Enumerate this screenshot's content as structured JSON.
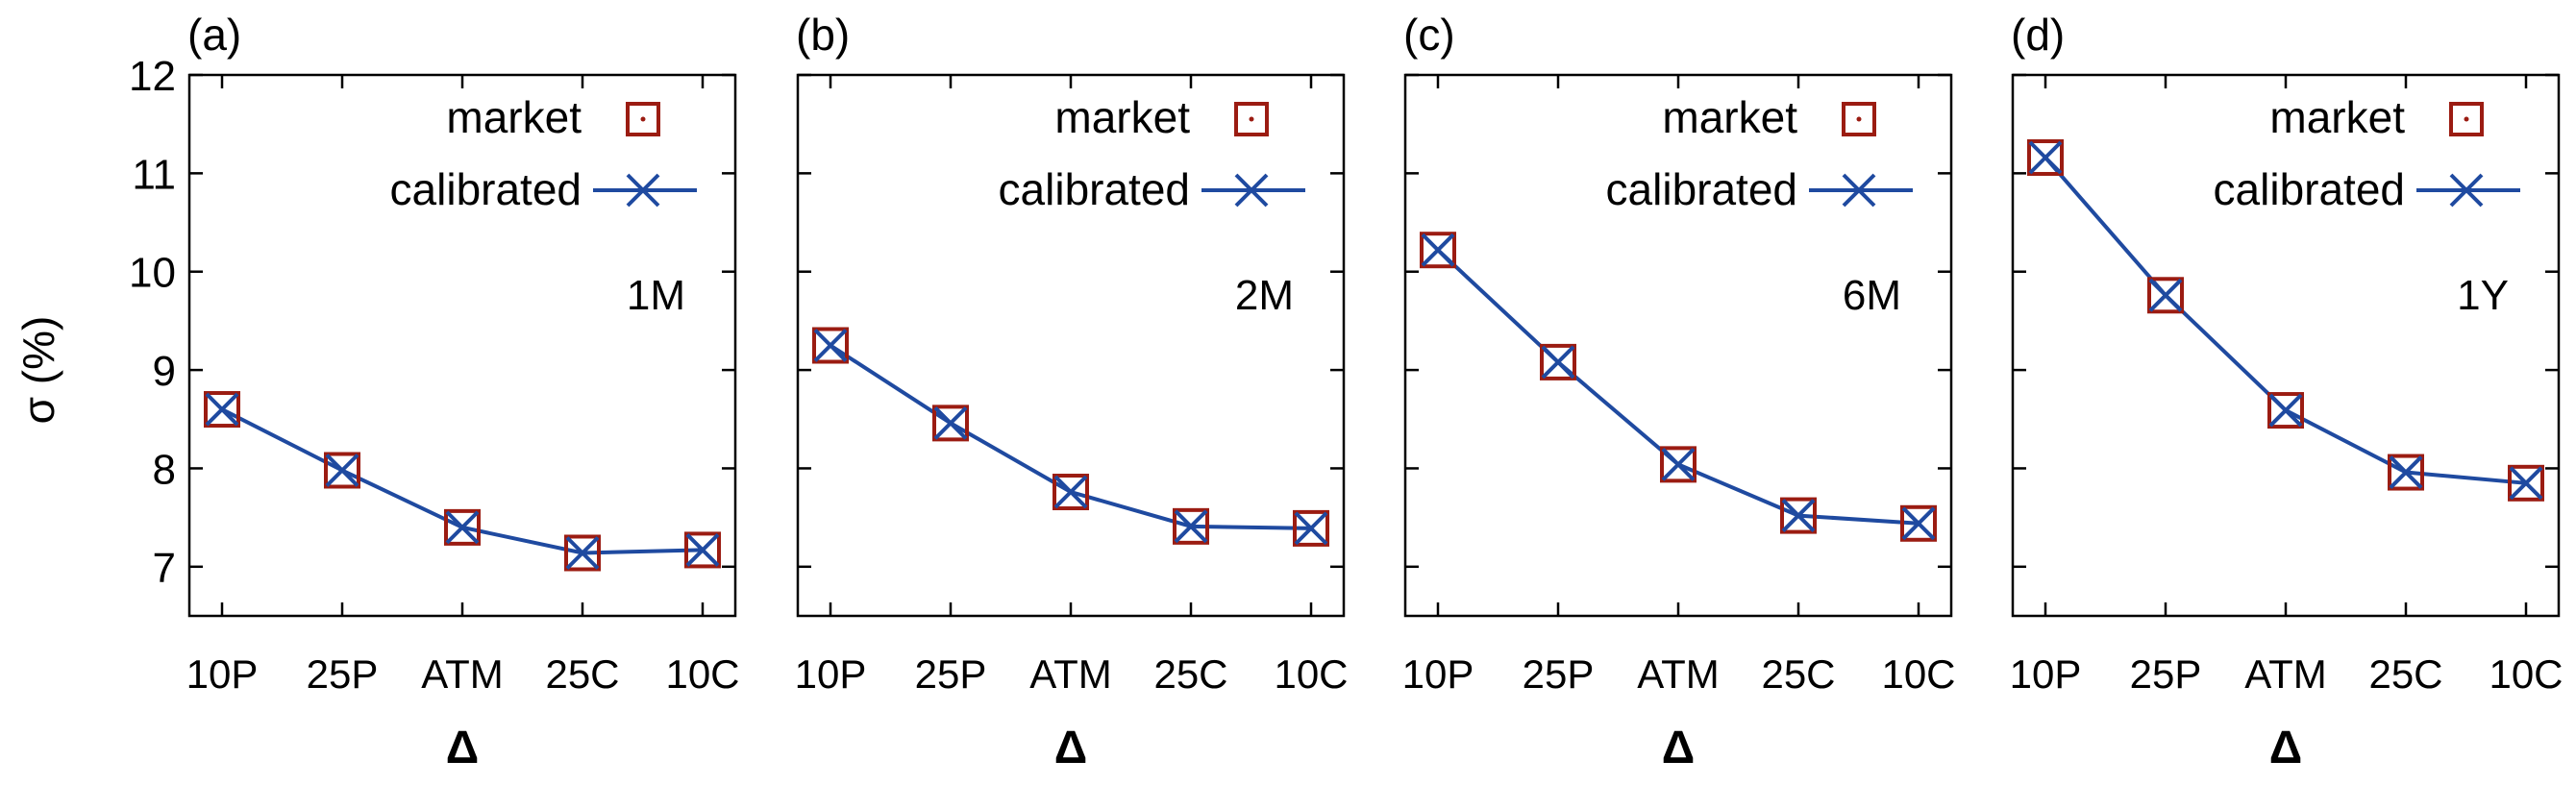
{
  "figure": {
    "ylabel": "σ (%)",
    "xlabel": "Δ",
    "legend": {
      "market": "market",
      "calibrated": "calibrated"
    }
  },
  "colors": {
    "market": "#9b1c12",
    "calibrated": "#1f4aa0",
    "axis": "#000000"
  },
  "chart_data": [
    {
      "type": "line",
      "panel_label": "(a)",
      "tenor": "1M",
      "categories": [
        "10P",
        "25P",
        "ATM",
        "25C",
        "10C"
      ],
      "ylim": [
        6.5,
        12
      ],
      "yticks": [
        7,
        8,
        9,
        10,
        11,
        12
      ],
      "xlabel": "Δ",
      "ylabel": "σ (%)",
      "legend_position": "top-right",
      "grid": false,
      "series": [
        {
          "name": "market",
          "values": [
            8.6,
            7.98,
            7.4,
            7.14,
            7.17
          ]
        },
        {
          "name": "calibrated",
          "values": [
            8.6,
            7.98,
            7.4,
            7.14,
            7.17
          ]
        }
      ]
    },
    {
      "type": "line",
      "panel_label": "(b)",
      "tenor": "2M",
      "categories": [
        "10P",
        "25P",
        "ATM",
        "25C",
        "10C"
      ],
      "ylim": [
        6.5,
        12
      ],
      "yticks": [
        7,
        8,
        9,
        10,
        11,
        12
      ],
      "xlabel": "Δ",
      "ylabel": "",
      "legend_position": "top-right",
      "grid": false,
      "series": [
        {
          "name": "market",
          "values": [
            9.25,
            8.46,
            7.76,
            7.41,
            7.39
          ]
        },
        {
          "name": "calibrated",
          "values": [
            9.25,
            8.46,
            7.76,
            7.41,
            7.39
          ]
        }
      ]
    },
    {
      "type": "line",
      "panel_label": "(c)",
      "tenor": "6M",
      "categories": [
        "10P",
        "25P",
        "ATM",
        "25C",
        "10C"
      ],
      "ylim": [
        6.5,
        12
      ],
      "yticks": [
        7,
        8,
        9,
        10,
        11,
        12
      ],
      "xlabel": "Δ",
      "ylabel": "",
      "legend_position": "top-right",
      "grid": false,
      "series": [
        {
          "name": "market",
          "values": [
            10.22,
            9.08,
            8.04,
            7.52,
            7.44
          ]
        },
        {
          "name": "calibrated",
          "values": [
            10.22,
            9.08,
            8.04,
            7.52,
            7.44
          ]
        }
      ]
    },
    {
      "type": "line",
      "panel_label": "(d)",
      "tenor": "1Y",
      "categories": [
        "10P",
        "25P",
        "ATM",
        "25C",
        "10C"
      ],
      "ylim": [
        6.5,
        12
      ],
      "yticks": [
        7,
        8,
        9,
        10,
        11,
        12
      ],
      "xlabel": "Δ",
      "ylabel": "",
      "legend_position": "top-right",
      "grid": false,
      "series": [
        {
          "name": "market",
          "values": [
            11.16,
            9.76,
            8.59,
            7.96,
            7.85
          ]
        },
        {
          "name": "calibrated",
          "values": [
            11.16,
            9.76,
            8.59,
            7.96,
            7.85
          ]
        }
      ]
    }
  ]
}
